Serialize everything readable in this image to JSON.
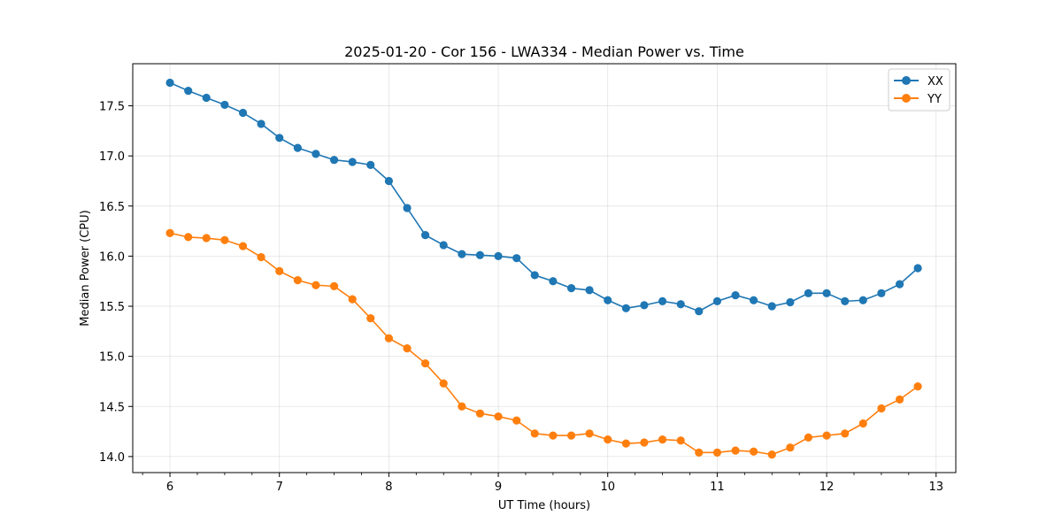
{
  "chart_data": {
    "type": "line",
    "title": "2025-01-20 - Cor 156 - LWA334 - Median Power vs. Time",
    "xlabel": "UT Time (hours)",
    "ylabel": "Median Power (CPU)",
    "xlim": [
      5.66,
      13.18
    ],
    "ylim": [
      13.84,
      17.92
    ],
    "grid": true,
    "legend_position": "top-right",
    "x_ticks": [
      6,
      7,
      8,
      9,
      10,
      11,
      12,
      13
    ],
    "x_tick_labels": [
      "6",
      "7",
      "8",
      "9",
      "10",
      "11",
      "12",
      "13"
    ],
    "y_ticks": [
      14.0,
      14.5,
      15.0,
      15.5,
      16.0,
      16.5,
      17.0,
      17.5
    ],
    "y_tick_labels": [
      "14.0",
      "14.5",
      "15.0",
      "15.5",
      "16.0",
      "16.5",
      "17.0",
      "17.5"
    ],
    "x_minor_ticks": [
      5.75,
      6.25,
      6.5,
      6.75,
      7.25,
      7.5,
      7.75,
      8.25,
      8.5,
      8.75,
      9.25,
      9.5,
      9.75,
      10.25,
      10.5,
      10.75,
      11.25,
      11.5,
      11.75,
      12.25,
      12.5,
      12.75,
      13.25
    ],
    "x": [
      6.0,
      6.167,
      6.333,
      6.5,
      6.667,
      6.833,
      7.0,
      7.167,
      7.333,
      7.5,
      7.667,
      7.833,
      8.0,
      8.167,
      8.333,
      8.5,
      8.667,
      8.833,
      9.0,
      9.167,
      9.333,
      9.5,
      9.667,
      9.833,
      10.0,
      10.167,
      10.333,
      10.5,
      10.667,
      10.833,
      11.0,
      11.167,
      11.333,
      11.5,
      11.667,
      11.833,
      12.0,
      12.167,
      12.333,
      12.5,
      12.667,
      12.833
    ],
    "series": [
      {
        "name": "XX",
        "color": "#1f77b4",
        "values": [
          17.73,
          17.65,
          17.58,
          17.51,
          17.43,
          17.32,
          17.18,
          17.08,
          17.02,
          16.96,
          16.94,
          16.91,
          16.75,
          16.48,
          16.21,
          16.11,
          16.02,
          16.01,
          16.0,
          15.98,
          15.81,
          15.75,
          15.68,
          15.66,
          15.56,
          15.48,
          15.51,
          15.55,
          15.52,
          15.45,
          15.55,
          15.61,
          15.56,
          15.5,
          15.54,
          15.63,
          15.63,
          15.55,
          15.56,
          15.63,
          15.72,
          15.88
        ]
      },
      {
        "name": "YY",
        "color": "#ff7f0e",
        "values": [
          16.23,
          16.19,
          16.18,
          16.16,
          16.1,
          15.99,
          15.85,
          15.76,
          15.71,
          15.7,
          15.57,
          15.38,
          15.18,
          15.08,
          14.93,
          14.73,
          14.5,
          14.43,
          14.4,
          14.36,
          14.23,
          14.21,
          14.21,
          14.23,
          14.17,
          14.13,
          14.14,
          14.17,
          14.16,
          14.04,
          14.04,
          14.06,
          14.05,
          14.02,
          14.09,
          14.19,
          14.21,
          14.23,
          14.33,
          14.48,
          14.57,
          14.7
        ]
      }
    ]
  }
}
